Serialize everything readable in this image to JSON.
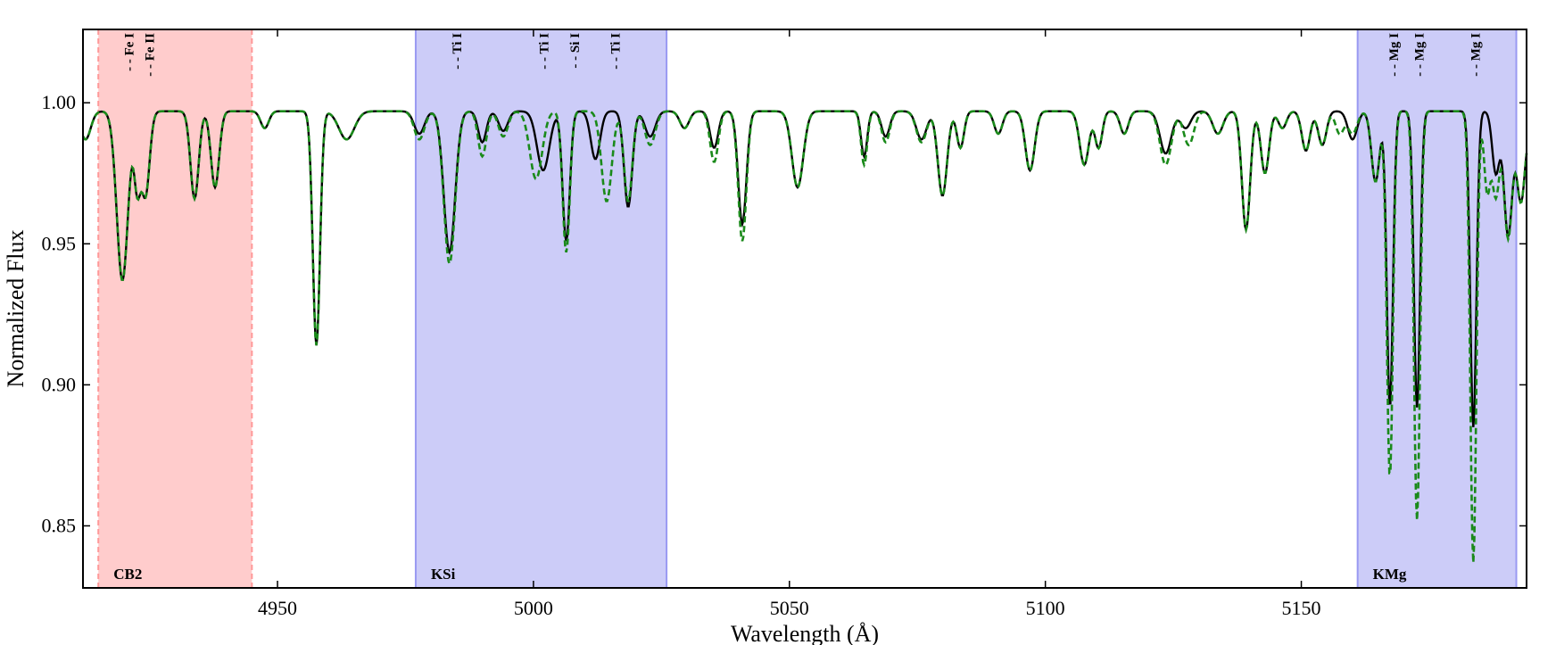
{
  "chart_data": {
    "type": "line",
    "title": "",
    "xlabel": "Wavelength (Å)",
    "ylabel": "Normalized Flux",
    "xlim": [
      4912,
      5194
    ],
    "ylim": [
      0.828,
      1.026
    ],
    "xticks": [
      4950,
      5000,
      5050,
      5100,
      5150
    ],
    "xtick_labels": [
      "4950",
      "5000",
      "5050",
      "5100",
      "5150"
    ],
    "yticks": [
      0.85,
      0.9,
      0.95,
      1.0
    ],
    "ytick_labels": [
      "0.85",
      "0.90",
      "0.95",
      "1.00"
    ],
    "grid": false,
    "legend": "none",
    "bands": [
      {
        "label": "CB2",
        "x0": 4915,
        "x1": 4945,
        "color": "#ff9999",
        "edge": "dashed"
      },
      {
        "label": "KSi",
        "x0": 4977,
        "x1": 5026,
        "color": "#9999f2",
        "edge": "solid"
      },
      {
        "label": "KMg",
        "x0": 5161,
        "x1": 5192,
        "color": "#9999f2",
        "edge": "solid"
      }
    ],
    "line_ids": [
      {
        "label": "- - Fe I",
        "x": 4921
      },
      {
        "label": "- - Fe II",
        "x": 4925
      },
      {
        "label": "- - Ti I",
        "x": 4985
      },
      {
        "label": "- - Ti I",
        "x": 5002
      },
      {
        "label": "- - Si I",
        "x": 5008
      },
      {
        "label": "- - Ti I",
        "x": 5016
      },
      {
        "label": "- - Mg I",
        "x": 5168
      },
      {
        "label": "- - Mg I",
        "x": 5173
      },
      {
        "label": "- - Mg I",
        "x": 5184
      }
    ],
    "continuum": 0.997,
    "series": [
      {
        "style": "solid",
        "color": "#000000",
        "lines": [
          {
            "c": 4919.7,
            "d": 0.06,
            "w": 1.1
          },
          {
            "c": 4922.6,
            "d": 0.025,
            "w": 0.6
          },
          {
            "c": 4924.2,
            "d": 0.03,
            "w": 0.8
          },
          {
            "c": 4933.8,
            "d": 0.031,
            "w": 0.8
          },
          {
            "c": 4937.8,
            "d": 0.027,
            "w": 0.8
          },
          {
            "c": 4947.5,
            "d": 0.006,
            "w": 0.8
          },
          {
            "c": 4957.6,
            "d": 0.083,
            "w": 0.7
          },
          {
            "c": 4963.5,
            "d": 0.01,
            "w": 1.5
          },
          {
            "c": 4977.7,
            "d": 0.008,
            "w": 1.0
          },
          {
            "c": 4983.6,
            "d": 0.05,
            "w": 1.1
          },
          {
            "c": 4990.0,
            "d": 0.011,
            "w": 0.8
          },
          {
            "c": 4994.1,
            "d": 0.007,
            "w": 0.9
          },
          {
            "c": 5001.9,
            "d": 0.021,
            "w": 1.2
          },
          {
            "c": 5006.4,
            "d": 0.046,
            "w": 0.7
          },
          {
            "c": 5012.1,
            "d": 0.017,
            "w": 0.9
          },
          {
            "c": 5018.5,
            "d": 0.034,
            "w": 0.8
          },
          {
            "c": 5022.8,
            "d": 0.009,
            "w": 1.0
          },
          {
            "c": 5029.5,
            "d": 0.006,
            "w": 0.9
          },
          {
            "c": 5035.3,
            "d": 0.013,
            "w": 0.8
          },
          {
            "c": 5040.8,
            "d": 0.04,
            "w": 0.8
          },
          {
            "c": 5051.6,
            "d": 0.027,
            "w": 1.1
          },
          {
            "c": 5064.6,
            "d": 0.016,
            "w": 0.6
          },
          {
            "c": 5068.8,
            "d": 0.009,
            "w": 0.8
          },
          {
            "c": 5075.8,
            "d": 0.01,
            "w": 1.0
          },
          {
            "c": 5079.9,
            "d": 0.03,
            "w": 0.9
          },
          {
            "c": 5083.4,
            "d": 0.013,
            "w": 0.7
          },
          {
            "c": 5090.8,
            "d": 0.008,
            "w": 0.8
          },
          {
            "c": 5097.0,
            "d": 0.021,
            "w": 0.9
          },
          {
            "c": 5107.6,
            "d": 0.019,
            "w": 0.9
          },
          {
            "c": 5110.4,
            "d": 0.013,
            "w": 0.7
          },
          {
            "c": 5115.4,
            "d": 0.008,
            "w": 0.8
          },
          {
            "c": 5123.5,
            "d": 0.015,
            "w": 1.1
          },
          {
            "c": 5127.4,
            "d": 0.006,
            "w": 1.0
          },
          {
            "c": 5133.7,
            "d": 0.008,
            "w": 1.0
          },
          {
            "c": 5139.2,
            "d": 0.042,
            "w": 0.8
          },
          {
            "c": 5142.9,
            "d": 0.022,
            "w": 0.8
          },
          {
            "c": 5146.3,
            "d": 0.006,
            "w": 0.8
          },
          {
            "c": 5150.9,
            "d": 0.014,
            "w": 0.8
          },
          {
            "c": 5154.1,
            "d": 0.012,
            "w": 0.8
          },
          {
            "c": 5160.0,
            "d": 0.01,
            "w": 0.9
          },
          {
            "c": 5164.5,
            "d": 0.025,
            "w": 0.8
          },
          {
            "c": 5167.3,
            "d": 0.105,
            "w": 0.6
          },
          {
            "c": 5172.6,
            "d": 0.105,
            "w": 0.6
          },
          {
            "c": 5183.6,
            "d": 0.112,
            "w": 0.6
          },
          {
            "c": 5188.0,
            "d": 0.022,
            "w": 0.7
          },
          {
            "c": 5190.4,
            "d": 0.044,
            "w": 0.8
          },
          {
            "c": 5192.9,
            "d": 0.032,
            "w": 0.8
          },
          {
            "c": 5196.0,
            "d": 0.018,
            "w": 1.0
          },
          {
            "c": 4912.5,
            "d": 0.01,
            "w": 1.0
          }
        ]
      },
      {
        "style": "dashed",
        "color": "#1a8a1a",
        "lines": [
          {
            "c": 4919.7,
            "d": 0.06,
            "w": 1.1
          },
          {
            "c": 4922.6,
            "d": 0.025,
            "w": 0.6
          },
          {
            "c": 4924.2,
            "d": 0.03,
            "w": 0.8
          },
          {
            "c": 4933.8,
            "d": 0.031,
            "w": 0.8
          },
          {
            "c": 4937.8,
            "d": 0.027,
            "w": 0.8
          },
          {
            "c": 4947.5,
            "d": 0.006,
            "w": 0.8
          },
          {
            "c": 4957.6,
            "d": 0.083,
            "w": 0.7
          },
          {
            "c": 4963.5,
            "d": 0.01,
            "w": 1.5
          },
          {
            "c": 4977.7,
            "d": 0.01,
            "w": 1.0
          },
          {
            "c": 4983.6,
            "d": 0.054,
            "w": 1.1
          },
          {
            "c": 4990.0,
            "d": 0.016,
            "w": 0.8
          },
          {
            "c": 4994.1,
            "d": 0.009,
            "w": 0.9
          },
          {
            "c": 5000.5,
            "d": 0.024,
            "w": 1.2
          },
          {
            "c": 5006.4,
            "d": 0.05,
            "w": 0.7
          },
          {
            "c": 5014.3,
            "d": 0.032,
            "w": 1.0
          },
          {
            "c": 5018.5,
            "d": 0.032,
            "w": 0.8
          },
          {
            "c": 5022.8,
            "d": 0.012,
            "w": 1.0
          },
          {
            "c": 5029.5,
            "d": 0.006,
            "w": 0.9
          },
          {
            "c": 5035.3,
            "d": 0.018,
            "w": 0.8
          },
          {
            "c": 5040.8,
            "d": 0.046,
            "w": 0.8
          },
          {
            "c": 5051.6,
            "d": 0.027,
            "w": 1.1
          },
          {
            "c": 5064.6,
            "d": 0.019,
            "w": 0.6
          },
          {
            "c": 5068.8,
            "d": 0.011,
            "w": 0.8
          },
          {
            "c": 5075.8,
            "d": 0.011,
            "w": 1.0
          },
          {
            "c": 5079.9,
            "d": 0.03,
            "w": 0.9
          },
          {
            "c": 5083.4,
            "d": 0.013,
            "w": 0.7
          },
          {
            "c": 5090.8,
            "d": 0.008,
            "w": 0.8
          },
          {
            "c": 5097.0,
            "d": 0.021,
            "w": 0.9
          },
          {
            "c": 5107.6,
            "d": 0.019,
            "w": 0.9
          },
          {
            "c": 5110.4,
            "d": 0.013,
            "w": 0.7
          },
          {
            "c": 5115.4,
            "d": 0.008,
            "w": 0.8
          },
          {
            "c": 5123.5,
            "d": 0.019,
            "w": 1.1
          },
          {
            "c": 5128.0,
            "d": 0.012,
            "w": 1.0
          },
          {
            "c": 5133.7,
            "d": 0.008,
            "w": 1.0
          },
          {
            "c": 5139.2,
            "d": 0.042,
            "w": 0.8
          },
          {
            "c": 5142.9,
            "d": 0.022,
            "w": 0.8
          },
          {
            "c": 5146.3,
            "d": 0.006,
            "w": 0.8
          },
          {
            "c": 5150.9,
            "d": 0.014,
            "w": 0.8
          },
          {
            "c": 5154.1,
            "d": 0.012,
            "w": 0.8
          },
          {
            "c": 5157.5,
            "d": 0.008,
            "w": 0.8
          },
          {
            "c": 5160.0,
            "d": 0.008,
            "w": 0.9
          },
          {
            "c": 5164.5,
            "d": 0.025,
            "w": 0.8
          },
          {
            "c": 5167.3,
            "d": 0.13,
            "w": 0.6
          },
          {
            "c": 5172.6,
            "d": 0.145,
            "w": 0.6
          },
          {
            "c": 5183.6,
            "d": 0.16,
            "w": 0.6
          },
          {
            "c": 5186.3,
            "d": 0.028,
            "w": 0.6
          },
          {
            "c": 5188.0,
            "d": 0.03,
            "w": 0.7
          },
          {
            "c": 5190.4,
            "d": 0.045,
            "w": 0.8
          },
          {
            "c": 5192.9,
            "d": 0.032,
            "w": 0.8
          },
          {
            "c": 5196.0,
            "d": 0.018,
            "w": 1.0
          },
          {
            "c": 4912.5,
            "d": 0.01,
            "w": 1.0
          }
        ]
      }
    ]
  }
}
